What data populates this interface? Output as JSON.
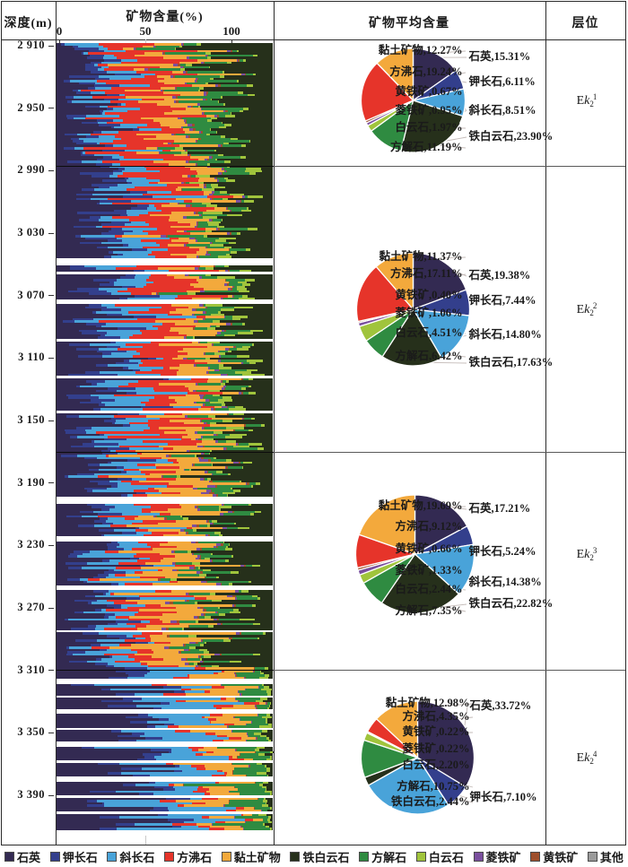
{
  "title_row": {
    "depth": "深度(m)",
    "content": "矿物含量(%)",
    "average": "矿物平均含量",
    "layer": "层位"
  },
  "axis": {
    "ticks": [
      "0",
      "50",
      "100"
    ]
  },
  "depth_labels": [
    "2 910",
    "2 950",
    "2 990",
    "3 030",
    "3 070",
    "3 110",
    "3 150",
    "3 190",
    "3 230",
    "3 270",
    "3 310",
    "3 350",
    "3 390"
  ],
  "minerals": {
    "quartz": {
      "name": "石英",
      "color": "#332a52"
    },
    "kfeldspar": {
      "name": "钾长石",
      "color": "#333f8c"
    },
    "plagioclase": {
      "name": "斜长石",
      "color": "#49a3d9"
    },
    "analcime": {
      "name": "方沸石",
      "color": "#e6342a"
    },
    "clay": {
      "name": "黏土矿物",
      "color": "#f3a93c"
    },
    "ankerite": {
      "name": "铁白云石",
      "color": "#26301b"
    },
    "calcite": {
      "name": "方解石",
      "color": "#2f8b41"
    },
    "dolomite": {
      "name": "白云石",
      "color": "#a0c43c"
    },
    "siderite": {
      "name": "菱铁矿",
      "color": "#7a4f9e"
    },
    "pyrite": {
      "name": "黄铁矿",
      "color": "#9e4f2c"
    },
    "other": {
      "name": "其他",
      "color": "#9a9a9a"
    }
  },
  "legend_order": [
    "quartz",
    "kfeldspar",
    "plagioclase",
    "analcime",
    "clay",
    "ankerite",
    "calcite",
    "dolomite",
    "siderite",
    "pyrite",
    "other"
  ],
  "layers": [
    {
      "prefix": "E",
      "symbol": "k",
      "sub": "2",
      "sup": "1"
    },
    {
      "prefix": "E",
      "symbol": "k",
      "sub": "2",
      "sup": "2"
    },
    {
      "prefix": "E",
      "symbol": "k",
      "sub": "2",
      "sup": "3"
    },
    {
      "prefix": "E",
      "symbol": "k",
      "sub": "2",
      "sup": "4"
    }
  ],
  "chart_data": {
    "pies": [
      {
        "type": "pie",
        "layer": "Ek2-1",
        "slices": [
          {
            "mineral": "quartz",
            "value": "15.31",
            "label_side": "right"
          },
          {
            "mineral": "kfeldspar",
            "value": "6.11",
            "label_side": "right"
          },
          {
            "mineral": "plagioclase",
            "value": "8.51",
            "label_side": "right"
          },
          {
            "mineral": "ankerite",
            "value": "23.90",
            "label_side": "right"
          },
          {
            "mineral": "calcite",
            "value": "11.19",
            "label_side": "left"
          },
          {
            "mineral": "dolomite",
            "value": "1.97",
            "label_side": "left"
          },
          {
            "mineral": "siderite",
            "value": "0.95",
            "label_side": "left"
          },
          {
            "mineral": "pyrite",
            "value": "0.67",
            "label_side": "left"
          },
          {
            "mineral": "analcime",
            "value": "19.24",
            "label_side": "left"
          },
          {
            "mineral": "clay",
            "value": "12.27",
            "label_side": "left"
          }
        ]
      },
      {
        "type": "pie",
        "layer": "Ek2-2",
        "slices": [
          {
            "mineral": "quartz",
            "value": "19.38",
            "label_side": "right"
          },
          {
            "mineral": "kfeldspar",
            "value": "7.44",
            "label_side": "right"
          },
          {
            "mineral": "plagioclase",
            "value": "14.80",
            "label_side": "right"
          },
          {
            "mineral": "ankerite",
            "value": "17.63",
            "label_side": "right"
          },
          {
            "mineral": "calcite",
            "value": "6.42",
            "label_side": "left"
          },
          {
            "mineral": "dolomite",
            "value": "4.51",
            "label_side": "left"
          },
          {
            "mineral": "siderite",
            "value": "1.06",
            "label_side": "left"
          },
          {
            "mineral": "pyrite",
            "value": "0.40",
            "label_side": "left"
          },
          {
            "mineral": "analcime",
            "value": "17.11",
            "label_side": "left"
          },
          {
            "mineral": "clay",
            "value": "11.37",
            "label_side": "left"
          }
        ]
      },
      {
        "type": "pie",
        "layer": "Ek2-3",
        "slices": [
          {
            "mineral": "quartz",
            "value": "17.21",
            "label_side": "right"
          },
          {
            "mineral": "kfeldspar",
            "value": "5.24",
            "label_side": "right"
          },
          {
            "mineral": "plagioclase",
            "value": "14.38",
            "label_side": "right"
          },
          {
            "mineral": "ankerite",
            "value": "22.82",
            "label_side": "right"
          },
          {
            "mineral": "calcite",
            "value": "7.35",
            "label_side": "left"
          },
          {
            "mineral": "dolomite",
            "value": "2.44",
            "label_side": "left"
          },
          {
            "mineral": "siderite",
            "value": "1.33",
            "label_side": "left"
          },
          {
            "mineral": "pyrite",
            "value": "0.66",
            "label_side": "left"
          },
          {
            "mineral": "analcime",
            "value": "9.12",
            "label_side": "left"
          },
          {
            "mineral": "clay",
            "value": "19.69",
            "label_side": "left"
          }
        ]
      },
      {
        "type": "pie",
        "layer": "Ek2-4",
        "slices": [
          {
            "mineral": "quartz",
            "value": "33.72",
            "label_side": "right"
          },
          {
            "mineral": "kfeldspar",
            "value": "7.10",
            "label_side": "right"
          },
          {
            "mineral": "plagioclase",
            "value": "26.02",
            "label_side": "inside"
          },
          {
            "mineral": "ankerite",
            "value": "2.44",
            "label_side": "left"
          },
          {
            "mineral": "calcite",
            "value": "10.75",
            "label_side": "left"
          },
          {
            "mineral": "dolomite",
            "value": "2.20",
            "label_side": "left"
          },
          {
            "mineral": "siderite",
            "value": "0.22",
            "label_side": "left"
          },
          {
            "mineral": "pyrite",
            "value": "0.22",
            "label_side": "left"
          },
          {
            "mineral": "analcime",
            "value": "4.35",
            "label_side": "left"
          },
          {
            "mineral": "clay",
            "value": "12.98",
            "label_side": "left"
          }
        ]
      }
    ],
    "strat_column": {
      "type": "stacked-bar",
      "orientation": "horizontal-rows-by-depth",
      "x_axis": {
        "label": "矿物含量(%)",
        "ticks": [
          0,
          50,
          100
        ]
      },
      "depth_axis": {
        "label": "深度(m)",
        "top_m": 2908,
        "bottom_m": 3416,
        "tick_interval_m": 40
      },
      "zones": [
        {
          "layer": "Ek2-1",
          "depth_top_m": 2908,
          "depth_bottom_m": 2990,
          "avg_composition": {
            "quartz": 15.31,
            "kfeldspar": 6.11,
            "plagioclase": 8.51,
            "analcime": 19.24,
            "clay": 12.27,
            "siderite": 0.95,
            "pyrite": 0.67,
            "calcite": 11.19,
            "dolomite": 1.97,
            "ankerite": 23.9
          }
        },
        {
          "layer": "Ek2-2",
          "depth_top_m": 2990,
          "depth_bottom_m": 3170,
          "avg_composition": {
            "quartz": 19.38,
            "kfeldspar": 7.44,
            "plagioclase": 14.8,
            "analcime": 17.11,
            "clay": 11.37,
            "siderite": 1.06,
            "pyrite": 0.4,
            "calcite": 6.42,
            "dolomite": 4.51,
            "ankerite": 17.63
          }
        },
        {
          "layer": "Ek2-3",
          "depth_top_m": 3170,
          "depth_bottom_m": 3310,
          "avg_composition": {
            "quartz": 17.21,
            "kfeldspar": 5.24,
            "plagioclase": 14.38,
            "analcime": 9.12,
            "clay": 19.69,
            "siderite": 1.33,
            "pyrite": 0.66,
            "calcite": 7.35,
            "dolomite": 2.44,
            "ankerite": 22.82
          }
        },
        {
          "layer": "Ek2-4",
          "depth_top_m": 3310,
          "depth_bottom_m": 3416,
          "avg_composition": {
            "quartz": 33.72,
            "kfeldspar": 7.1,
            "plagioclase": 26.02,
            "analcime": 4.35,
            "clay": 12.98,
            "siderite": 0.22,
            "pyrite": 0.22,
            "calcite": 10.75,
            "dolomite": 2.2,
            "ankerite": 2.44
          }
        }
      ]
    }
  }
}
